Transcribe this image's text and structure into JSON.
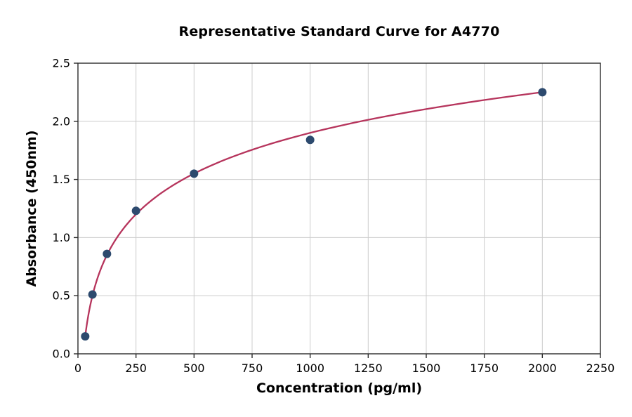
{
  "chart_data": {
    "type": "scatter",
    "title": "Representative Standard Curve for A4770",
    "xlabel": "Concentration (pg/ml)",
    "ylabel": "Absorbance (450nm)",
    "x": [
      31.25,
      62.5,
      125,
      250,
      500,
      1000,
      2000
    ],
    "y": [
      0.15,
      0.51,
      0.86,
      1.23,
      1.55,
      1.84,
      2.25
    ],
    "fit_curve": {
      "type": "logarithmic",
      "equation": "y = 0.505*ln(x) - 1.588",
      "a": 0.505,
      "b": -1.588,
      "x_range": [
        31.25,
        2000
      ]
    },
    "xlim": [
      0,
      2250
    ],
    "ylim": [
      0,
      2.5
    ],
    "xticks": [
      0,
      250,
      500,
      750,
      1000,
      1250,
      1500,
      1750,
      2000,
      2250
    ],
    "yticks": [
      0.0,
      0.5,
      1.0,
      1.5,
      2.0,
      2.5
    ],
    "grid": true,
    "legend": "none",
    "colors": {
      "curve": "#b6345c",
      "marker": "#2d4a6e",
      "grid": "#cccccc",
      "spine": "#2b2b2b",
      "text": "#000000",
      "background": "#ffffff"
    }
  }
}
